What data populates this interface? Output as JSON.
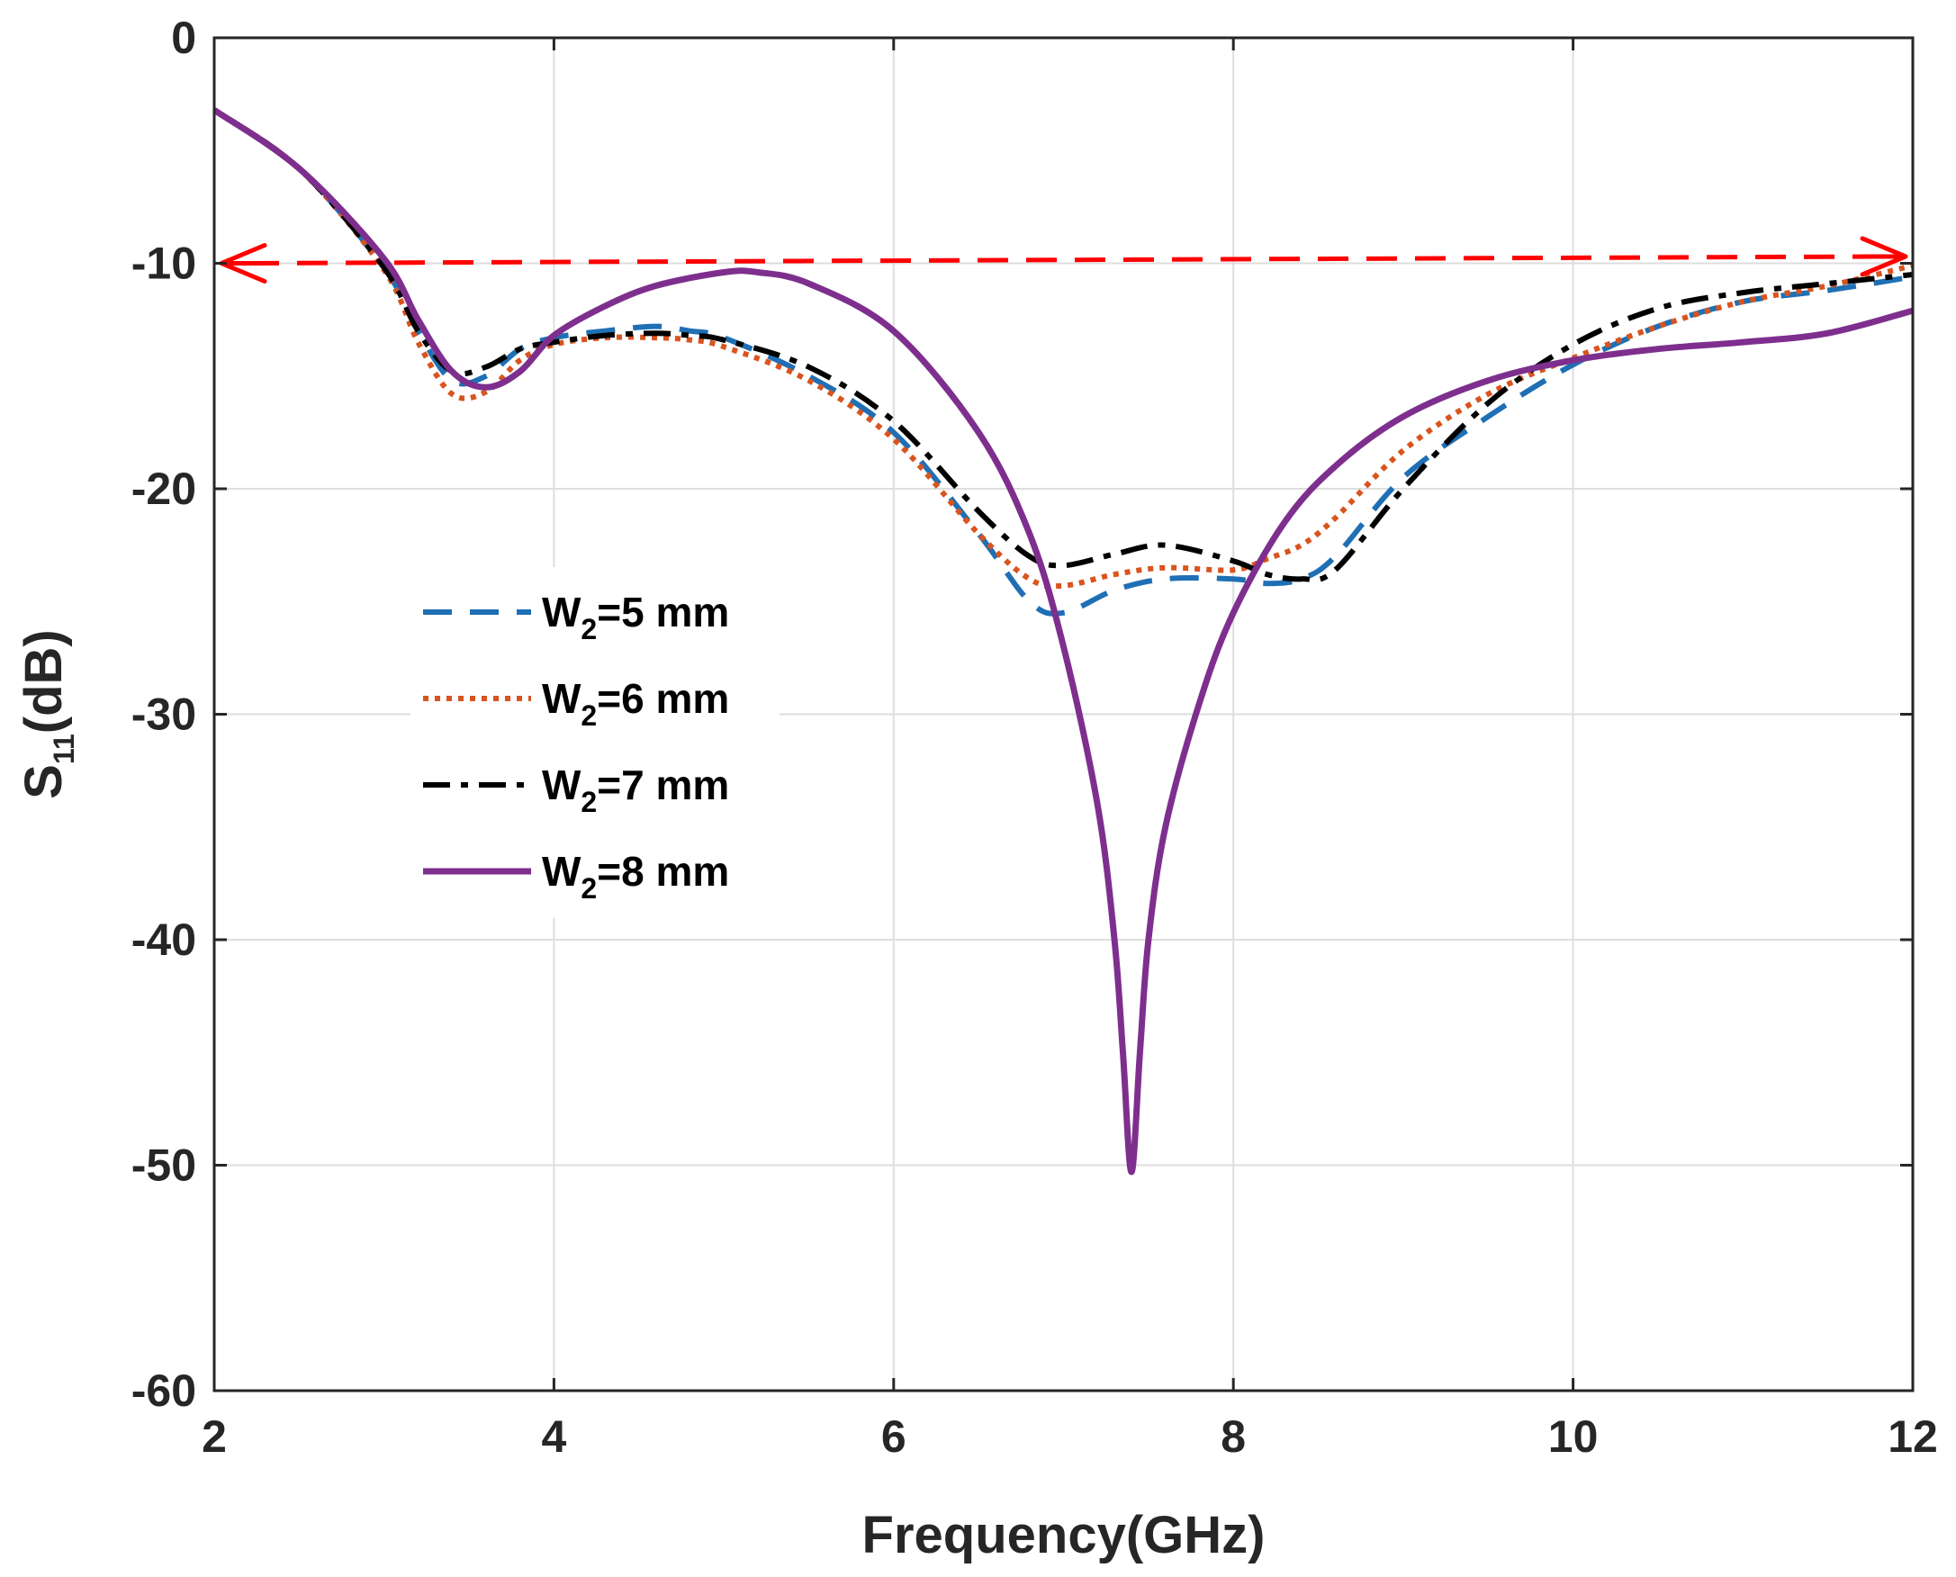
{
  "chart_data": {
    "type": "line",
    "title": "",
    "xlabel": "Frequency(GHz)",
    "ylabel": {
      "main": "S",
      "sub": "11",
      "rest": "(dB)"
    },
    "xlim": [
      2,
      12
    ],
    "ylim": [
      -60,
      0
    ],
    "xticks": [
      2,
      4,
      6,
      8,
      10,
      12
    ],
    "yticks": [
      0,
      -10,
      -20,
      -30,
      -40,
      -50,
      -60
    ],
    "grid": true,
    "legend_position": "center-left",
    "reference_line": {
      "y_start": -10,
      "y_end": -9.7,
      "style": "dashed double-arrow",
      "color": "#ff0000"
    },
    "series": [
      {
        "name": {
          "main": "W",
          "sub": "2",
          "rest": "=5 mm"
        },
        "color": "#1f6fb4",
        "dash": "dashed",
        "x": [
          2,
          2.5,
          3,
          3.2,
          3.4,
          3.6,
          3.8,
          4,
          4.3,
          4.6,
          4.8,
          5,
          5.5,
          6,
          6.5,
          6.8,
          7,
          7.3,
          7.6,
          8,
          8.2,
          8.4,
          8.6,
          9,
          9.5,
          10,
          10.5,
          11,
          11.5,
          12
        ],
        "y": [
          -3.2,
          -5.8,
          -10.2,
          -13,
          -15.2,
          -15,
          -13.8,
          -13.3,
          -13,
          -12.8,
          -13,
          -13.3,
          -15,
          -17.5,
          -22,
          -25,
          -25.5,
          -24.5,
          -24,
          -24,
          -24.2,
          -24,
          -23,
          -19.5,
          -16.8,
          -14.5,
          -12.8,
          -11.7,
          -11.2,
          -10.6
        ]
      },
      {
        "name": {
          "main": "W",
          "sub": "2",
          "rest": "=6 mm"
        },
        "color": "#d9541e",
        "dash": "dotted",
        "x": [
          2,
          2.5,
          3,
          3.2,
          3.4,
          3.6,
          3.8,
          4,
          4.3,
          4.6,
          4.8,
          5,
          5.5,
          6,
          6.5,
          6.8,
          7,
          7.3,
          7.6,
          8,
          8.2,
          8.4,
          8.6,
          9,
          9.5,
          10,
          10.5,
          11,
          11.5,
          12
        ],
        "y": [
          -3.2,
          -5.8,
          -10.3,
          -13.5,
          -15.8,
          -15.7,
          -14.3,
          -13.6,
          -13.3,
          -13.3,
          -13.4,
          -13.7,
          -15.2,
          -17.8,
          -22,
          -24,
          -24.3,
          -23.8,
          -23.5,
          -23.6,
          -23.1,
          -22.5,
          -21.3,
          -18.3,
          -15.8,
          -14.2,
          -12.8,
          -11.7,
          -11,
          -10.1
        ]
      },
      {
        "name": {
          "main": "W",
          "sub": "2",
          "rest": "=7 mm"
        },
        "color": "#000000",
        "dash": "dashdot",
        "x": [
          2,
          2.5,
          3,
          3.2,
          3.4,
          3.6,
          3.8,
          4,
          4.3,
          4.6,
          4.8,
          5,
          5.5,
          6,
          6.5,
          6.8,
          7,
          7.3,
          7.6,
          8,
          8.2,
          8.4,
          8.6,
          9,
          9.5,
          10,
          10.5,
          11,
          11.5,
          12
        ],
        "y": [
          -3.2,
          -5.8,
          -10.2,
          -13,
          -14.8,
          -14.6,
          -13.8,
          -13.5,
          -13.2,
          -13.1,
          -13.2,
          -13.4,
          -14.6,
          -17,
          -21,
          -23,
          -23.4,
          -22.9,
          -22.5,
          -23.2,
          -23.8,
          -24,
          -23.6,
          -20,
          -16.2,
          -13.6,
          -12,
          -11.3,
          -10.9,
          -10.5
        ]
      },
      {
        "name": {
          "main": "W",
          "sub": "2",
          "rest": "=8 mm"
        },
        "color": "#7e2f8e",
        "dash": "solid",
        "x": [
          2,
          2.5,
          3,
          3.2,
          3.4,
          3.6,
          3.8,
          4,
          4.3,
          4.6,
          5,
          5.2,
          5.5,
          6,
          6.5,
          6.8,
          7,
          7.2,
          7.3,
          7.35,
          7.4,
          7.45,
          7.5,
          7.6,
          7.8,
          8,
          8.3,
          8.6,
          9,
          9.5,
          10,
          10.5,
          11,
          11.5,
          12
        ],
        "y": [
          -3.2,
          -5.8,
          -9.8,
          -12.5,
          -14.8,
          -15.5,
          -14.8,
          -13.2,
          -11.9,
          -11,
          -10.4,
          -10.4,
          -10.9,
          -13,
          -17.5,
          -22,
          -27,
          -34,
          -40,
          -45,
          -50.3,
          -45,
          -40,
          -35,
          -29.5,
          -25.5,
          -21.5,
          -19,
          -16.8,
          -15.2,
          -14.3,
          -13.8,
          -13.5,
          -13.1,
          -12.1
        ]
      }
    ]
  }
}
